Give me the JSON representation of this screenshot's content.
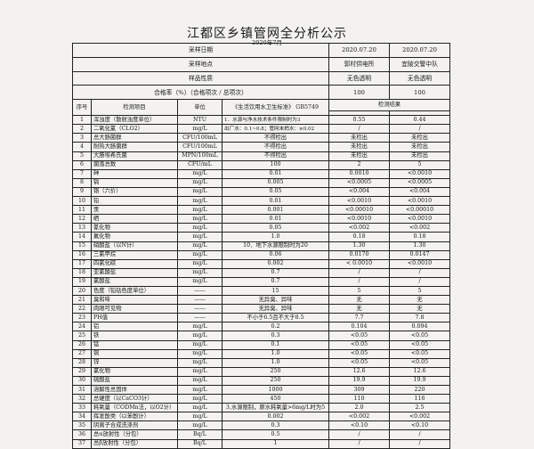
{
  "title": "江都区乡镇管网全分析公示",
  "date": "2020年7月",
  "header_rows": [
    {
      "label": "采样日期",
      "values": [
        "2020.07.20",
        "2020.07.20"
      ]
    },
    {
      "label": "采样地点",
      "values": [
        "郭村供电所",
        "宜陵交警中队"
      ]
    },
    {
      "label": "样品性质",
      "values": [
        "无色透明",
        "无色透明"
      ]
    },
    {
      "label": "合格率（%）（合格项次 / 总项次）",
      "values": [
        "100",
        "100"
      ]
    }
  ],
  "columns": {
    "seq": "序号",
    "item": "检测项目",
    "unit": "单位",
    "standard": "《生活饮用水卫生标准》 GB5749",
    "results": "检测结果"
  },
  "rows": [
    [
      "1",
      "浑浊度（散射浊度单位）",
      "NTU",
      "1．水源与净水技术条件限制时为3",
      "0.55",
      "0.44"
    ],
    [
      "2",
      "二氧化氯（CLO2）",
      "mg/L",
      "出厂水：0.1~0.8；管网末梢水：≥0.02",
      "/",
      "/"
    ],
    [
      "3",
      "总大肠菌群",
      "CFU/100mL",
      "不得检出",
      "未检出",
      "未检出"
    ],
    [
      "4",
      "耐热大肠菌群",
      "CFU/100mL",
      "不得检出",
      "未检出",
      "未检出"
    ],
    [
      "5",
      "大肠埃希氏菌",
      "MPN/100mL",
      "不得检出",
      "未检出",
      "未检出"
    ],
    [
      "6",
      "菌落总数",
      "CFU/mL",
      "100",
      "2",
      "5"
    ],
    [
      "7",
      "砷",
      "mg/L",
      "0.01",
      "0.0010",
      "<0.0010"
    ],
    [
      "8",
      "镉",
      "mg/L",
      "0.005",
      "<0.0005",
      "<0.0005"
    ],
    [
      "9",
      "铬（六价）",
      "mg/L",
      "0.05",
      "<0.004",
      "<0.004"
    ],
    [
      "10",
      "铅",
      "mg/L",
      "0.01",
      "<0.0010",
      "<0.0010"
    ],
    [
      "11",
      "汞",
      "mg/L",
      "0.001",
      "<0.00010",
      "<0.00010"
    ],
    [
      "12",
      "硒",
      "mg/L",
      "0.01",
      "<0.0010",
      "<0.0010"
    ],
    [
      "13",
      "氰化物",
      "mg/L",
      "0.05",
      "<0.002",
      "<0.002"
    ],
    [
      "14",
      "氟化物",
      "mg/L",
      "1.0",
      "0.18",
      "0.18"
    ],
    [
      "15",
      "硝酸盐（以N计）",
      "mg/L",
      "10．地下水源限制时为20",
      "1.30",
      "1.30"
    ],
    [
      "16",
      "三氯甲烷",
      "mg/L",
      "0.06",
      "0.0170",
      "0.0147"
    ],
    [
      "17",
      "四氯化碳",
      "mg/L",
      "0.002",
      "< 0.0010",
      "<0.0010"
    ],
    [
      "18",
      "亚氯酸盐",
      "mg/L",
      "0.7",
      "/",
      "/"
    ],
    [
      "19",
      "氯酸盐",
      "mg/L",
      "0.7",
      "/",
      "/"
    ],
    [
      "20",
      "色度（铂钴色度单位）",
      "——",
      "15",
      "5",
      "5"
    ],
    [
      "21",
      "臭和味",
      "——",
      "无异臭、异味",
      "无",
      "无"
    ],
    [
      "22",
      "肉眼可见物",
      "——",
      "无异臭、异味",
      "无",
      "无"
    ],
    [
      "23",
      "PH值",
      "——",
      "不小于6.5且不大于8.5",
      "7.7",
      "7.8"
    ],
    [
      "24",
      "铝",
      "mg/L",
      "0.2",
      "0.104",
      "0.094"
    ],
    [
      "25",
      "铁",
      "mg/L",
      "0.3",
      "<0.05",
      "<0.05"
    ],
    [
      "26",
      "锰",
      "mg/L",
      "0.1",
      "<0.05",
      "<0.05"
    ],
    [
      "27",
      "铜",
      "mg/L",
      "1.0",
      "<0.05",
      "<0.05"
    ],
    [
      "28",
      "锌",
      "mg/L",
      "1.0",
      "<0.05",
      "<0.05"
    ],
    [
      "29",
      "氯化物",
      "mg/L",
      "250",
      "12.6",
      "12.6"
    ],
    [
      "30",
      "硫酸盐",
      "mg/L",
      "250",
      "19.9",
      "19.9"
    ],
    [
      "31",
      "溶解性总固体",
      "mg/L",
      "1000",
      "309",
      "220"
    ],
    [
      "32",
      "总硬度（以CaCO3计）",
      "mg/L",
      "450",
      "110",
      "116"
    ],
    [
      "33",
      "耗氧量（CODMn法，以O2计）",
      "mg/L",
      "3,水源限制，原水耗氧量>6mg/L时为5",
      "2.0",
      "2.5"
    ],
    [
      "34",
      "挥发酚类（以苯酚计）",
      "mg/L",
      "0.002",
      "<0.002",
      "<0.002"
    ],
    [
      "35",
      "阴离子合成洗涤剂",
      "mg/L",
      "0.3",
      "<0.10",
      "<0.10"
    ],
    [
      "36",
      "总α放射性（分包）",
      "Bq/L",
      "0.5",
      "/",
      "/"
    ],
    [
      "37",
      "总β放射性（分包）",
      "Bq/L",
      "1",
      "/",
      "/"
    ]
  ]
}
